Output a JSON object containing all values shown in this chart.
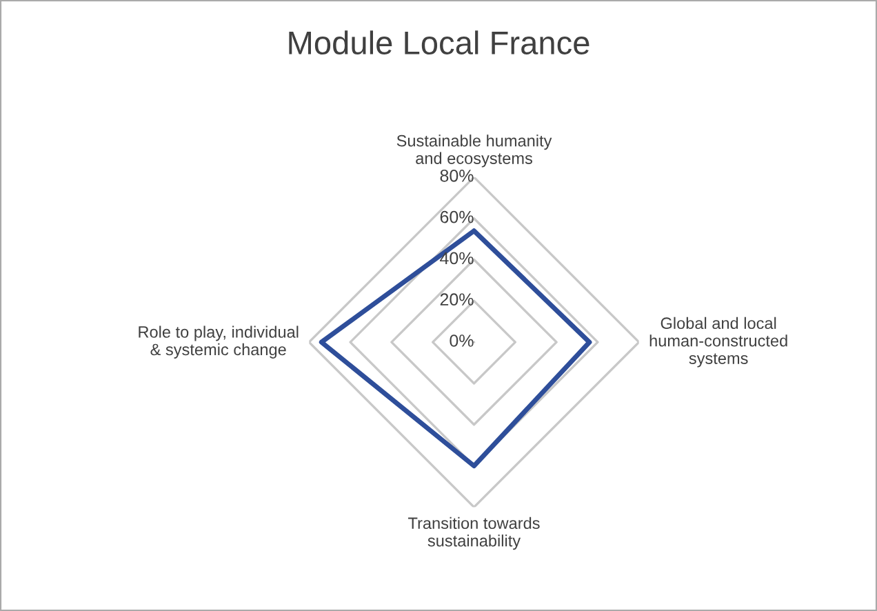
{
  "chart_data": {
    "type": "radar",
    "title": "Module Local France",
    "categories": [
      "Sustainable humanity\nand ecosystems",
      "Global and local\nhuman-constructed\nsystems",
      "Transition towards\nsustainability",
      "Role to play, individual\n& systemic change"
    ],
    "series": [
      {
        "color": "#2e4e9a",
        "values": [
          54,
          56,
          60,
          74
        ]
      }
    ],
    "ylim": [
      0,
      80
    ],
    "yticks": [
      {
        "value": 0,
        "label": "0%"
      },
      {
        "value": 20,
        "label": "20%"
      },
      {
        "value": 40,
        "label": "40%"
      },
      {
        "value": 60,
        "label": "60%"
      },
      {
        "value": 80,
        "label": "80%"
      }
    ],
    "grid": true
  }
}
